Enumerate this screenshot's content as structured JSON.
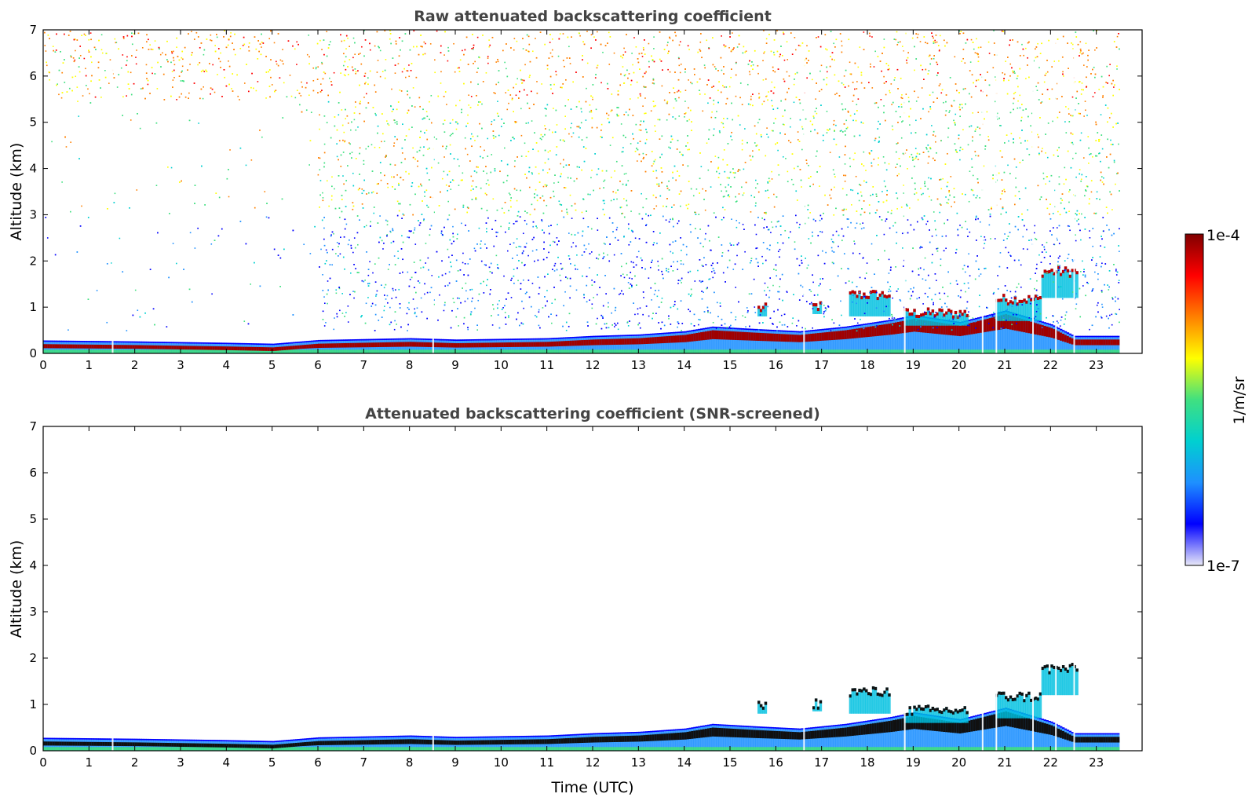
{
  "chart_data": [
    {
      "type": "heatmap",
      "title": "Raw attenuated backscattering coefficient",
      "xlabel": "",
      "ylabel": "Altitude (km)",
      "xlim": [
        0,
        24
      ],
      "ylim": [
        0,
        7
      ],
      "x_ticks": [
        "0",
        "1",
        "2",
        "3",
        "4",
        "5",
        "6",
        "7",
        "8",
        "9",
        "10",
        "11",
        "12",
        "13",
        "14",
        "15",
        "16",
        "17",
        "18",
        "19",
        "20",
        "21",
        "22",
        "23"
      ],
      "y_ticks": [
        "0",
        "1",
        "2",
        "3",
        "4",
        "5",
        "6",
        "7"
      ],
      "data_end_time": 23.5,
      "layer_top_km": [
        {
          "t": 0,
          "h": 0.25
        },
        {
          "t": 2,
          "h": 0.23
        },
        {
          "t": 4,
          "h": 0.2
        },
        {
          "t": 5,
          "h": 0.18
        },
        {
          "t": 6,
          "h": 0.26
        },
        {
          "t": 8,
          "h": 0.3
        },
        {
          "t": 9,
          "h": 0.27
        },
        {
          "t": 11,
          "h": 0.3
        },
        {
          "t": 12,
          "h": 0.35
        },
        {
          "t": 13,
          "h": 0.38
        },
        {
          "t": 14,
          "h": 0.45
        },
        {
          "t": 14.6,
          "h": 0.55
        },
        {
          "t": 15.5,
          "h": 0.5
        },
        {
          "t": 16.5,
          "h": 0.45
        },
        {
          "t": 17.5,
          "h": 0.55
        },
        {
          "t": 18.5,
          "h": 0.7
        },
        {
          "t": 19,
          "h": 0.8
        },
        {
          "t": 20,
          "h": 0.65
        },
        {
          "t": 21,
          "h": 0.9
        },
        {
          "t": 22,
          "h": 0.6
        },
        {
          "t": 22.5,
          "h": 0.35
        },
        {
          "t": 23.5,
          "h": 0.35
        }
      ],
      "cloud_features": [
        {
          "t_start": 15.6,
          "t_end": 15.8,
          "base_km": 0.8,
          "top_km": 1.0
        },
        {
          "t_start": 16.8,
          "t_end": 17.0,
          "base_km": 0.85,
          "top_km": 1.05
        },
        {
          "t_start": 17.6,
          "t_end": 18.5,
          "base_km": 0.8,
          "top_km": 1.3
        },
        {
          "t_start": 18.8,
          "t_end": 20.2,
          "base_km": 0.6,
          "top_km": 0.9
        },
        {
          "t_start": 20.8,
          "t_end": 21.8,
          "base_km": 0.7,
          "top_km": 1.2
        },
        {
          "t_start": 21.8,
          "t_end": 22.6,
          "base_km": 1.2,
          "top_km": 1.8
        }
      ]
    },
    {
      "type": "heatmap",
      "title": "Attenuated backscattering coefficient (SNR-screened)",
      "xlabel": "Time (UTC)",
      "ylabel": "Altitude (km)",
      "xlim": [
        0,
        24
      ],
      "ylim": [
        0,
        7
      ],
      "x_ticks": [
        "0",
        "1",
        "2",
        "3",
        "4",
        "5",
        "6",
        "7",
        "8",
        "9",
        "10",
        "11",
        "12",
        "13",
        "14",
        "15",
        "16",
        "17",
        "18",
        "19",
        "20",
        "21",
        "22",
        "23"
      ],
      "y_ticks": [
        "0",
        "1",
        "2",
        "3",
        "4",
        "5",
        "6",
        "7"
      ],
      "data_end_time": 23.5
    }
  ],
  "colorbar": {
    "label": "1/m/sr",
    "max_label": "1e-4",
    "min_label": "1e-7",
    "scale": "log",
    "range": [
      1e-07,
      0.0001
    ],
    "colors": [
      "#e8e8f8",
      "#0000ff",
      "#1e90ff",
      "#00d0d0",
      "#40e080",
      "#ffff00",
      "#ff8000",
      "#ff0000",
      "#800000"
    ]
  }
}
